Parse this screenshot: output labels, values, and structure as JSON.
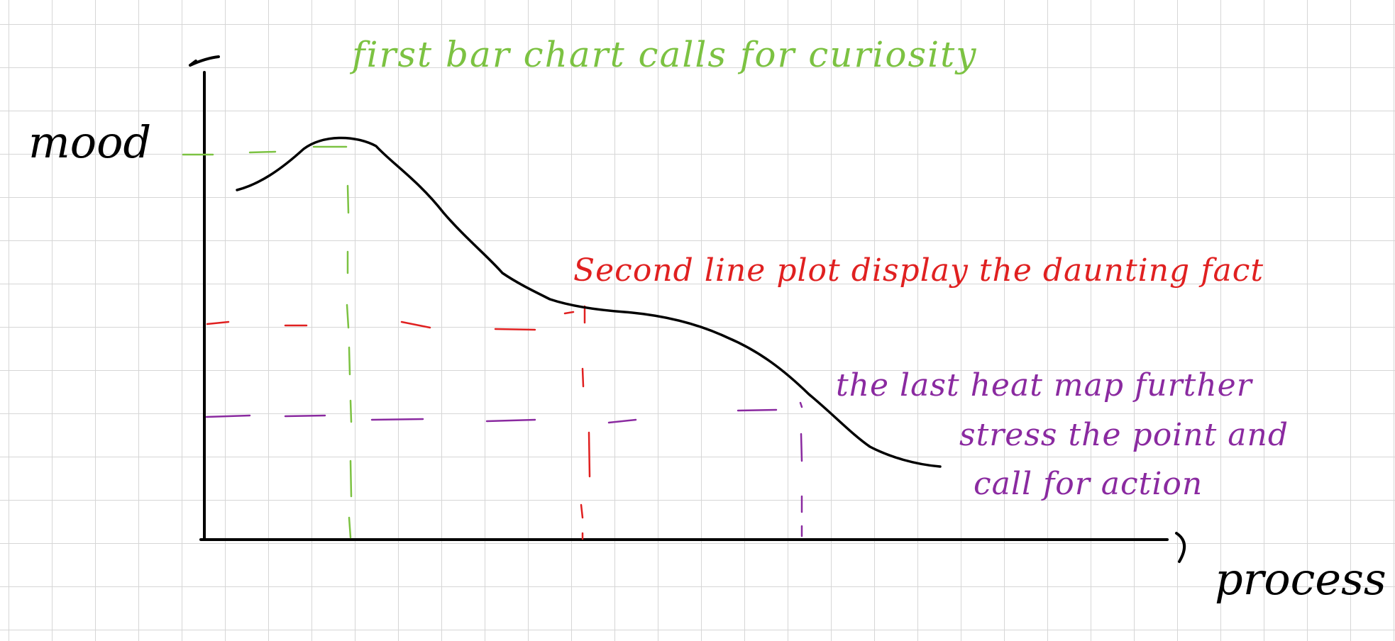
{
  "axes": {
    "y_label": "mood",
    "x_label": "process",
    "axis_color": "#000000"
  },
  "curve": {
    "description_color": "#000000"
  },
  "annotations": [
    {
      "text": "first bar chart calls for curiosity",
      "color": "#7cc242"
    },
    {
      "text": "Second line plot display the daunting fact",
      "color": "#e02020"
    },
    {
      "lines": [
        "the last heat map further",
        "stress the point and",
        "call for action"
      ],
      "color": "#8a2aa0"
    }
  ]
}
